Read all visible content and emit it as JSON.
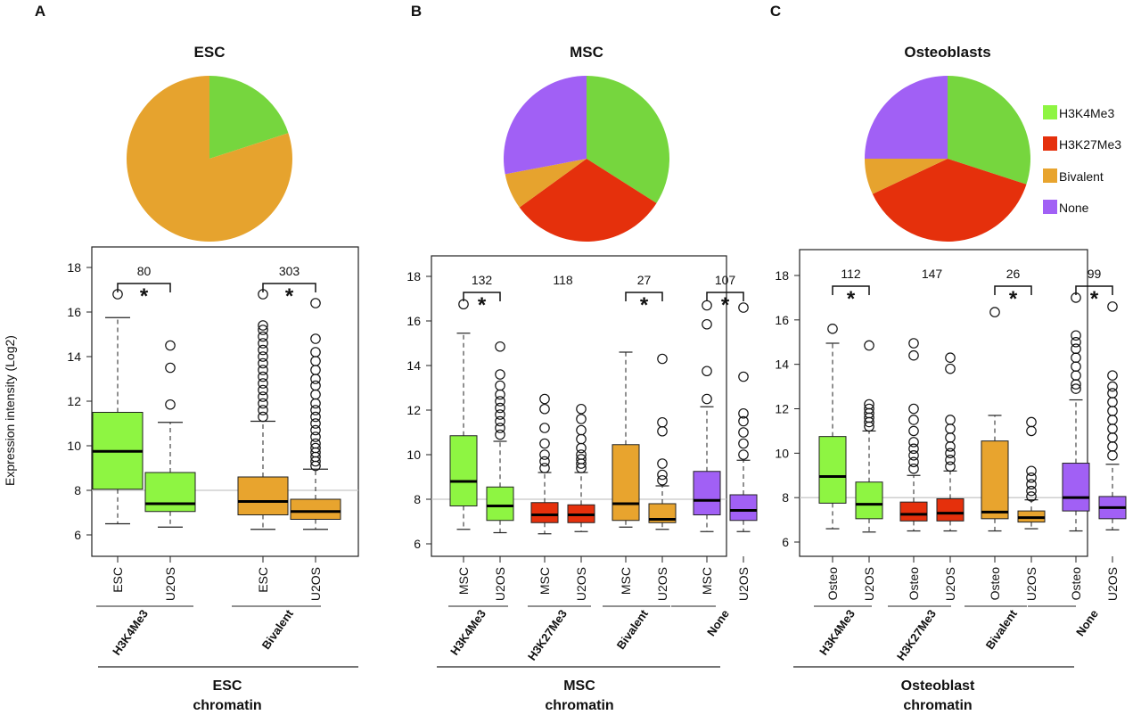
{
  "chart_data": [
    {
      "type": "boxplot",
      "panel": "A",
      "title": "ESC",
      "ylabel": "Expression intensity (Log2)",
      "ylim": [
        6,
        18
      ],
      "yticks": [
        6,
        8,
        10,
        12,
        14,
        16,
        18
      ],
      "reference_line": 8,
      "pie": [
        {
          "label": "H3K4Me3",
          "value": 20
        },
        {
          "label": "Bivalent",
          "value": 80
        }
      ],
      "groups": [
        {
          "name": "H3K4Me3",
          "count": "80",
          "significant": "*"
        },
        {
          "name": "Bivalent",
          "count": "303",
          "significant": "*"
        }
      ],
      "boxes": [
        {
          "label": "ESC",
          "group": "H3K4Me3",
          "min": 6.5,
          "q1": 8.05,
          "median": 9.75,
          "q3": 11.5,
          "max": 15.75,
          "outliers": [
            16.8
          ]
        },
        {
          "label": "U2OS",
          "group": "H3K4Me3",
          "min": 6.35,
          "q1": 7.05,
          "median": 7.4,
          "q3": 8.8,
          "max": 11.05,
          "outliers": [
            11.85,
            13.5,
            14.5
          ]
        },
        {
          "label": "ESC",
          "group": "Bivalent",
          "min": 6.25,
          "q1": 6.9,
          "median": 7.5,
          "q3": 8.6,
          "max": 11.1,
          "outliers": [
            11.3,
            11.6,
            11.9,
            12.2,
            12.5,
            12.8,
            13.1,
            13.4,
            13.7,
            14.0,
            14.3,
            14.6,
            14.9,
            15.2,
            15.4,
            16.8
          ]
        },
        {
          "label": "U2OS",
          "group": "Bivalent",
          "min": 6.25,
          "q1": 6.7,
          "median": 7.05,
          "q3": 7.6,
          "max": 8.95,
          "outliers": [
            9.1,
            9.3,
            9.5,
            9.7,
            9.9,
            10.1,
            10.4,
            10.7,
            11.0,
            11.3,
            11.6,
            11.9,
            12.3,
            12.7,
            13.0,
            13.4,
            13.8,
            14.2,
            14.8,
            16.4
          ]
        }
      ],
      "xgroup_title": [
        "ESC",
        "chromatin"
      ]
    },
    {
      "type": "boxplot",
      "panel": "B",
      "title": "MSC",
      "ylim": [
        6,
        18
      ],
      "yticks": [
        6,
        8,
        10,
        12,
        14,
        16,
        18
      ],
      "reference_line": 8,
      "pie": [
        {
          "label": "H3K4Me3",
          "value": 34
        },
        {
          "label": "H3K27Me3",
          "value": 31
        },
        {
          "label": "Bivalent",
          "value": 7
        },
        {
          "label": "None",
          "value": 28
        }
      ],
      "groups": [
        {
          "name": "H3K4Me3",
          "count": "132",
          "significant": "*"
        },
        {
          "name": "H3K27Me3",
          "count": "118",
          "significant": ""
        },
        {
          "name": "Bivalent",
          "count": "27",
          "significant": "*"
        },
        {
          "name": "None",
          "count": "107",
          "significant": "*"
        }
      ],
      "boxes": [
        {
          "label": "MSC",
          "group": "H3K4Me3",
          "min": 6.65,
          "q1": 7.7,
          "median": 8.8,
          "q3": 10.85,
          "max": 15.45,
          "outliers": [
            16.75
          ]
        },
        {
          "label": "U2OS",
          "group": "H3K4Me3",
          "min": 6.5,
          "q1": 7.05,
          "median": 7.7,
          "q3": 8.55,
          "max": 10.6,
          "outliers": [
            10.9,
            11.2,
            11.5,
            11.8,
            12.1,
            12.4,
            12.7,
            13.1,
            13.6,
            14.85
          ]
        },
        {
          "label": "MSC",
          "group": "H3K27Me3",
          "min": 6.45,
          "q1": 6.95,
          "median": 7.3,
          "q3": 7.85,
          "max": 9.2,
          "outliers": [
            9.4,
            9.7,
            10.0,
            10.5,
            11.2,
            12.05,
            12.5
          ]
        },
        {
          "label": "U2OS",
          "group": "H3K27Me3",
          "min": 6.55,
          "q1": 6.95,
          "median": 7.3,
          "q3": 7.75,
          "max": 9.2,
          "outliers": [
            9.4,
            9.6,
            9.8,
            10.0,
            10.3,
            10.7,
            11.1,
            11.6,
            12.05
          ]
        },
        {
          "label": "MSC",
          "group": "Bivalent",
          "min": 6.75,
          "q1": 7.05,
          "median": 7.8,
          "q3": 10.45,
          "max": 14.6,
          "outliers": []
        },
        {
          "label": "U2OS",
          "group": "Bivalent",
          "min": 6.65,
          "q1": 6.95,
          "median": 7.1,
          "q3": 7.8,
          "max": 8.6,
          "outliers": [
            8.85,
            9.1,
            9.6,
            11.05,
            11.45,
            14.3
          ]
        },
        {
          "label": "MSC",
          "group": "None",
          "min": 6.55,
          "q1": 7.3,
          "median": 7.95,
          "q3": 9.25,
          "max": 12.15,
          "outliers": [
            12.5,
            13.75,
            15.85,
            16.7
          ]
        },
        {
          "label": "U2OS",
          "group": "None",
          "min": 6.55,
          "q1": 7.05,
          "median": 7.5,
          "q3": 8.2,
          "max": 9.75,
          "outliers": [
            10.0,
            10.5,
            11.0,
            11.5,
            11.85,
            13.5,
            16.6
          ]
        }
      ],
      "xgroup_title": [
        "MSC",
        "chromatin"
      ]
    },
    {
      "type": "boxplot",
      "panel": "C",
      "title": "Osteoblasts",
      "ylim": [
        6,
        18
      ],
      "yticks": [
        6,
        8,
        10,
        12,
        14,
        16,
        18
      ],
      "reference_line": 8,
      "pie": [
        {
          "label": "H3K4Me3",
          "value": 30
        },
        {
          "label": "H3K27Me3",
          "value": 38
        },
        {
          "label": "Bivalent",
          "value": 7
        },
        {
          "label": "None",
          "value": 25
        }
      ],
      "groups": [
        {
          "name": "H3K4Me3",
          "count": "112",
          "significant": "*"
        },
        {
          "name": "H3K27Me3",
          "count": "147",
          "significant": ""
        },
        {
          "name": "Bivalent",
          "count": "26",
          "significant": "*"
        },
        {
          "name": "None",
          "count": "99",
          "significant": "*"
        }
      ],
      "boxes": [
        {
          "label": "Osteo",
          "group": "H3K4Me3",
          "min": 6.6,
          "q1": 7.75,
          "median": 8.95,
          "q3": 10.75,
          "max": 14.95,
          "outliers": [
            15.6
          ]
        },
        {
          "label": "U2OS",
          "group": "H3K4Me3",
          "min": 6.45,
          "q1": 7.05,
          "median": 7.7,
          "q3": 8.7,
          "max": 11.0,
          "outliers": [
            11.2,
            11.4,
            11.6,
            11.8,
            12.0,
            12.2,
            14.85
          ]
        },
        {
          "label": "Osteo",
          "group": "H3K27Me3",
          "min": 6.5,
          "q1": 6.95,
          "median": 7.25,
          "q3": 7.8,
          "max": 9.0,
          "outliers": [
            9.3,
            9.6,
            9.9,
            10.2,
            10.5,
            11.0,
            11.5,
            12.0,
            14.4,
            14.95
          ]
        },
        {
          "label": "U2OS",
          "group": "H3K27Me3",
          "min": 6.5,
          "q1": 6.95,
          "median": 7.3,
          "q3": 7.95,
          "max": 9.2,
          "outliers": [
            9.4,
            9.7,
            10.0,
            10.3,
            10.7,
            11.1,
            11.5,
            13.8,
            14.3
          ]
        },
        {
          "label": "Osteo",
          "group": "Bivalent",
          "min": 6.5,
          "q1": 7.05,
          "median": 7.35,
          "q3": 10.55,
          "max": 11.7,
          "outliers": [
            16.35
          ]
        },
        {
          "label": "U2OS",
          "group": "Bivalent",
          "min": 6.6,
          "q1": 6.9,
          "median": 7.1,
          "q3": 7.4,
          "max": 7.9,
          "outliers": [
            8.05,
            8.3,
            8.6,
            8.9,
            9.2,
            11.0,
            11.4
          ]
        },
        {
          "label": "Osteo",
          "group": "None",
          "min": 6.5,
          "q1": 7.4,
          "median": 8.0,
          "q3": 9.55,
          "max": 12.4,
          "outliers": [
            12.9,
            13.1,
            13.5,
            13.9,
            14.3,
            14.7,
            15.0,
            15.3,
            17.0
          ]
        },
        {
          "label": "U2OS",
          "group": "None",
          "min": 6.55,
          "q1": 7.05,
          "median": 7.55,
          "q3": 8.05,
          "max": 9.5,
          "outliers": [
            9.9,
            10.3,
            10.7,
            11.1,
            11.5,
            11.9,
            12.3,
            12.7,
            13.0,
            13.5,
            16.6
          ]
        }
      ],
      "xgroup_title": [
        "Osteoblast",
        "chromatin"
      ]
    }
  ],
  "legend": [
    {
      "label": "H3K4Me3",
      "color": "#8ef542"
    },
    {
      "label": "H3K27Me3",
      "color": "#e5300c"
    },
    {
      "label": "Bivalent",
      "color": "#e8a42e"
    },
    {
      "label": "None",
      "color": "#a160f5"
    }
  ],
  "colors": {
    "H3K4Me3": "#8ef542",
    "H3K27Me3": "#e5300c",
    "Bivalent": "#e8a42e",
    "None": "#a160f5",
    "pie_H3K4Me3": "#76d63e",
    "pie_H3K27Me3": "#e5300c",
    "pie_Bivalent": "#e6a32e",
    "pie_None": "#a160f5"
  }
}
